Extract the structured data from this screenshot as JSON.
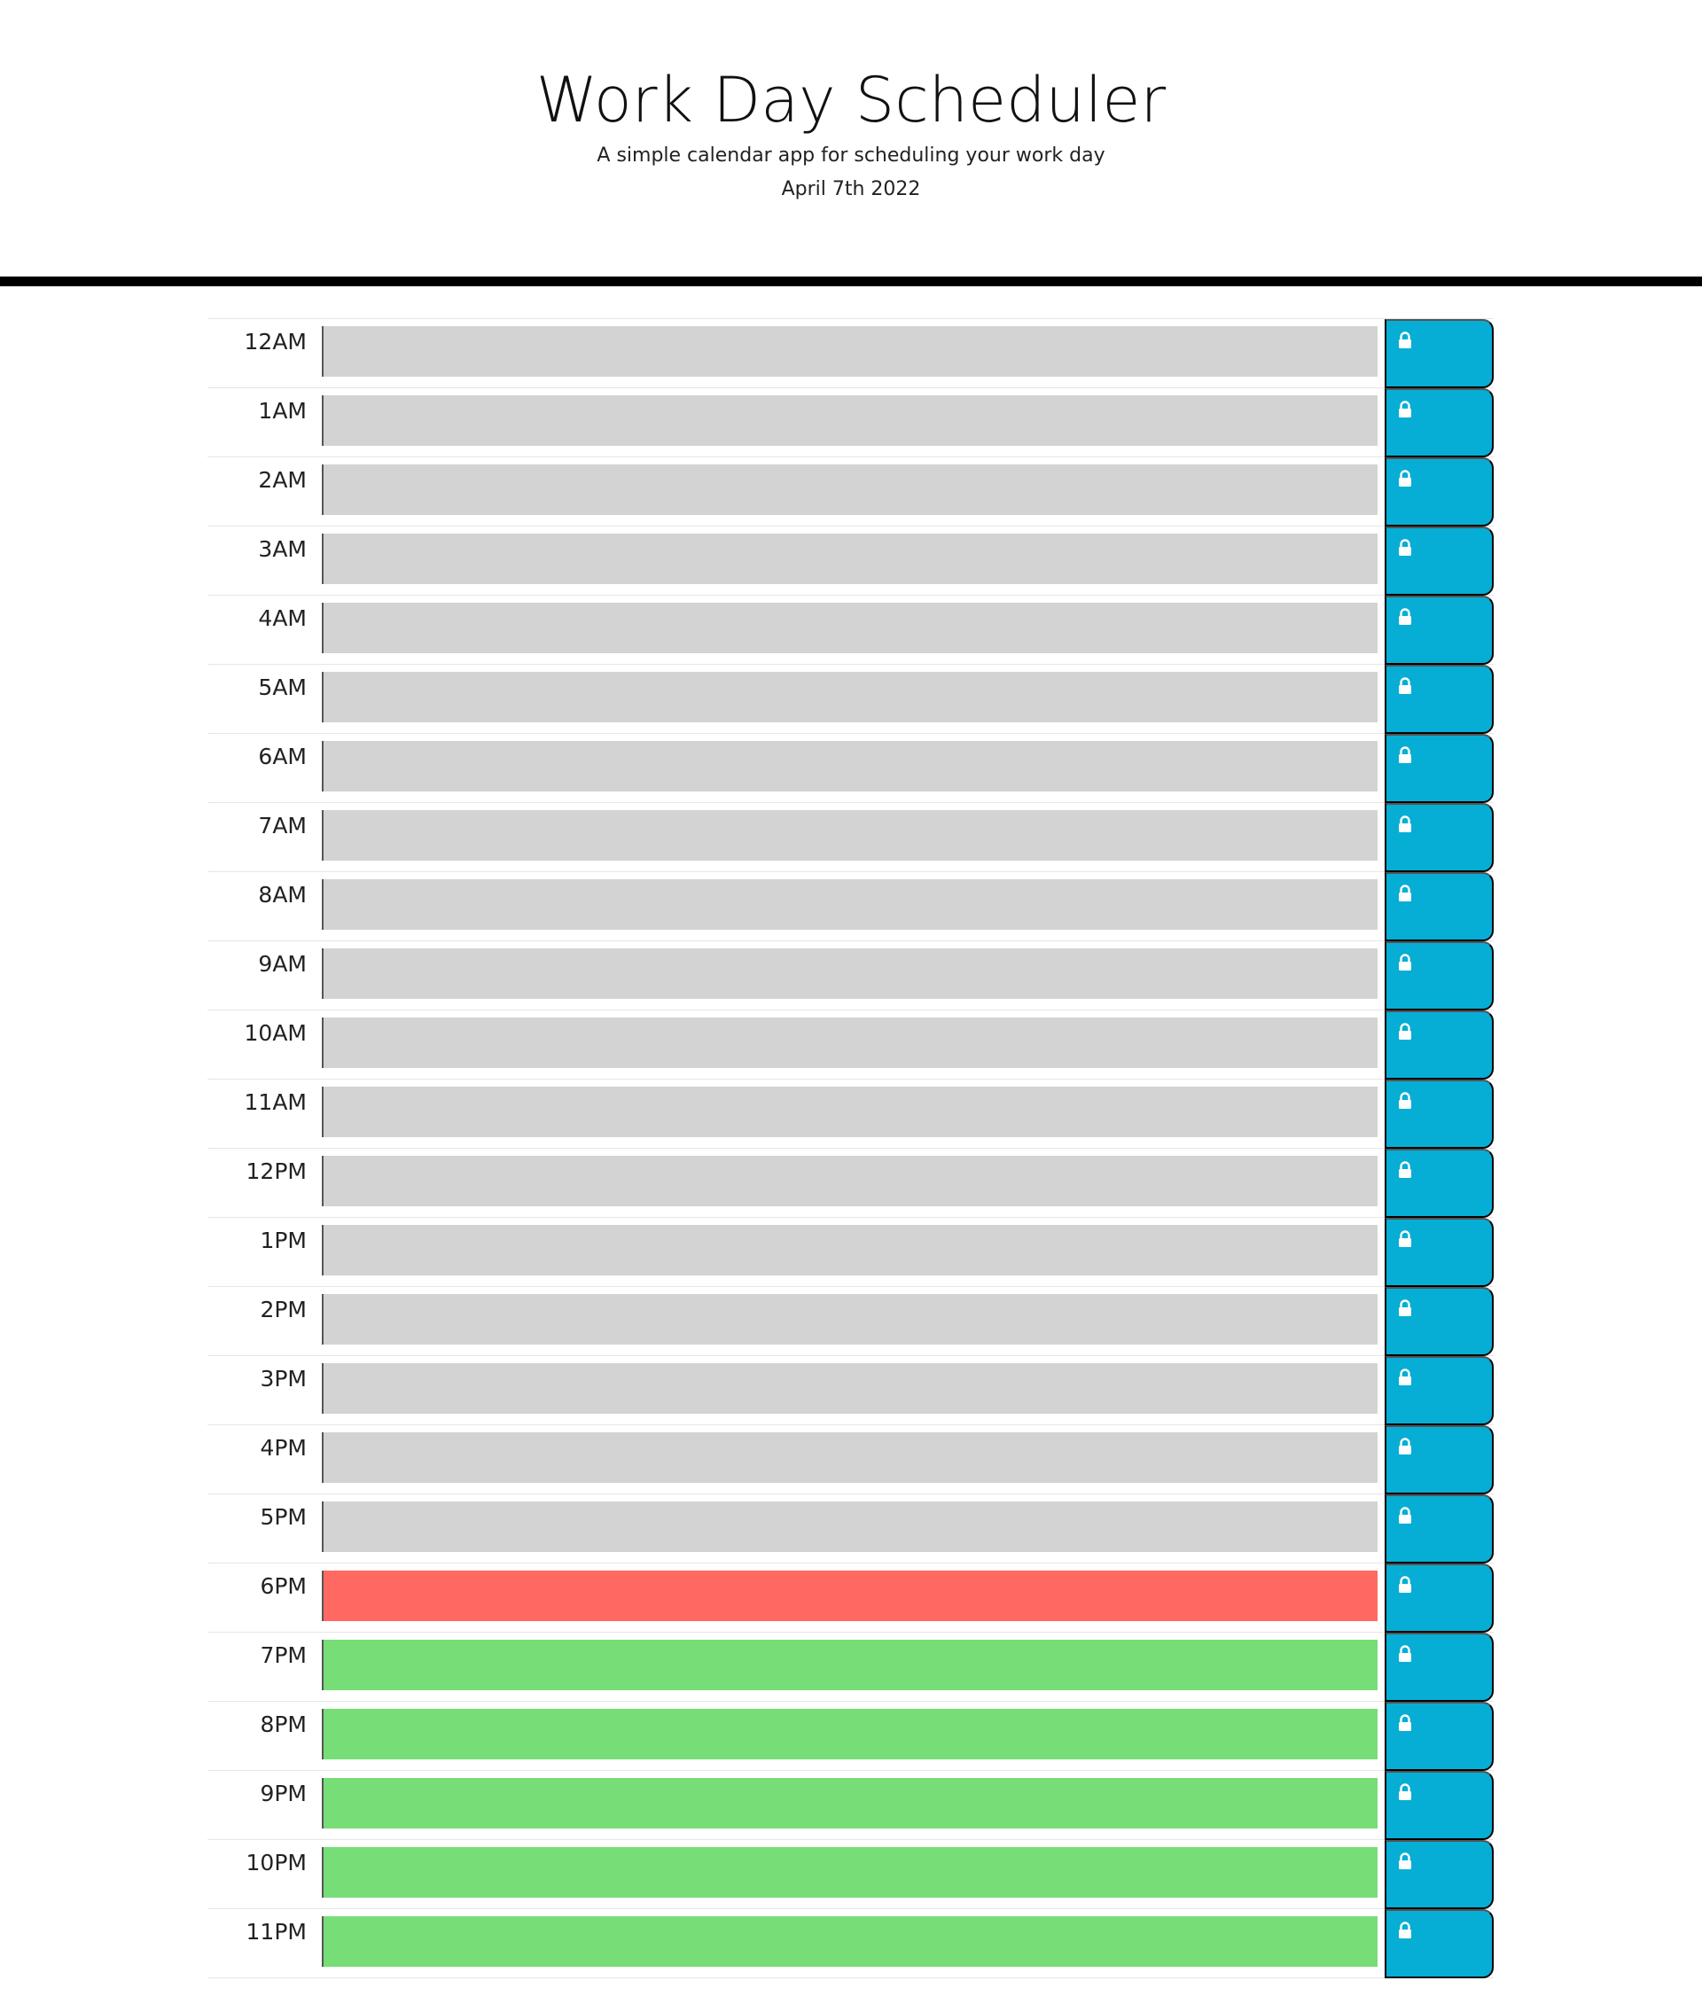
{
  "header": {
    "title": "Work Day Scheduler",
    "subtitle": "A simple calendar app for scheduling your work day",
    "date": "April 7th 2022"
  },
  "colors": {
    "past": "#d3d3d3",
    "present": "#ff6961",
    "future": "#77dd77",
    "save_button": "#06aed5",
    "header_border": "#000000"
  },
  "save_icon": "lock-icon",
  "rows": [
    {
      "hour": "12AM",
      "status": "past",
      "text": ""
    },
    {
      "hour": "1AM",
      "status": "past",
      "text": ""
    },
    {
      "hour": "2AM",
      "status": "past",
      "text": ""
    },
    {
      "hour": "3AM",
      "status": "past",
      "text": ""
    },
    {
      "hour": "4AM",
      "status": "past",
      "text": ""
    },
    {
      "hour": "5AM",
      "status": "past",
      "text": ""
    },
    {
      "hour": "6AM",
      "status": "past",
      "text": ""
    },
    {
      "hour": "7AM",
      "status": "past",
      "text": ""
    },
    {
      "hour": "8AM",
      "status": "past",
      "text": ""
    },
    {
      "hour": "9AM",
      "status": "past",
      "text": ""
    },
    {
      "hour": "10AM",
      "status": "past",
      "text": ""
    },
    {
      "hour": "11AM",
      "status": "past",
      "text": ""
    },
    {
      "hour": "12PM",
      "status": "past",
      "text": ""
    },
    {
      "hour": "1PM",
      "status": "past",
      "text": ""
    },
    {
      "hour": "2PM",
      "status": "past",
      "text": ""
    },
    {
      "hour": "3PM",
      "status": "past",
      "text": ""
    },
    {
      "hour": "4PM",
      "status": "past",
      "text": ""
    },
    {
      "hour": "5PM",
      "status": "past",
      "text": ""
    },
    {
      "hour": "6PM",
      "status": "present",
      "text": ""
    },
    {
      "hour": "7PM",
      "status": "future",
      "text": ""
    },
    {
      "hour": "8PM",
      "status": "future",
      "text": ""
    },
    {
      "hour": "9PM",
      "status": "future",
      "text": ""
    },
    {
      "hour": "10PM",
      "status": "future",
      "text": ""
    },
    {
      "hour": "11PM",
      "status": "future",
      "text": ""
    }
  ]
}
